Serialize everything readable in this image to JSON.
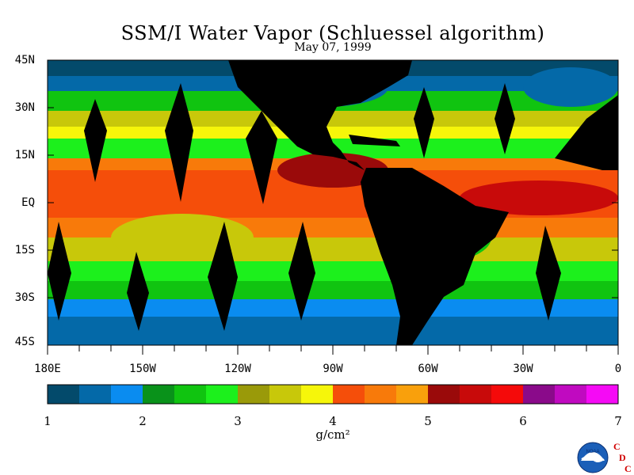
{
  "title": "SSM/I Water Vapor (Schluessel algorithm)",
  "subtitle": "May 07, 1999",
  "lat_labels": [
    "45N",
    "30N",
    "15N",
    "EQ",
    "15S",
    "30S",
    "45S"
  ],
  "lon_labels": [
    "180E",
    "150W",
    "120W",
    "90W",
    "60W",
    "30W",
    "0"
  ],
  "colorbar": {
    "ticks": [
      "1",
      "2",
      "3",
      "4",
      "5",
      "6",
      "7"
    ],
    "units": "g/cm²",
    "colors": [
      "#034a6b",
      "#0469a8",
      "#0a8cf0",
      "#09921a",
      "#10c410",
      "#1cf01c",
      "#9a9a09",
      "#c8c80a",
      "#f6f60a",
      "#f54e0a",
      "#f87a0a",
      "#f9a00c",
      "#9a0a0a",
      "#c80a0a",
      "#f50a0a",
      "#8a0a8a",
      "#c00ac0",
      "#f50af5"
    ]
  },
  "palette": {
    "land": "#000000",
    "deep_blue": "#034a6b",
    "mid_blue": "#0469a8",
    "light_blue": "#0a8cf0",
    "green": "#10c410",
    "bright_green": "#1cf01c",
    "olive": "#9a9a09",
    "yellow_green": "#c8c80a",
    "yellow": "#f6f60a",
    "orange_red": "#f54e0a",
    "orange": "#f87a0a",
    "dark_red": "#9a0a0a",
    "red": "#c80a0a"
  },
  "logo": {
    "agency": "NOAA",
    "letters": [
      "C",
      "D",
      "C"
    ]
  }
}
